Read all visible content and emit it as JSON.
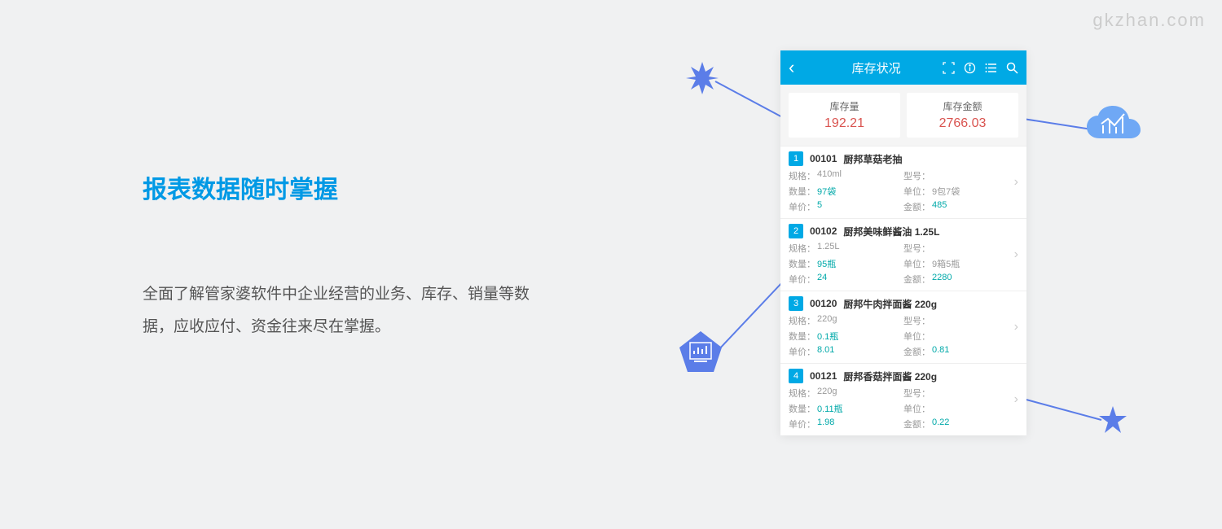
{
  "watermark": "gkzhan.com",
  "left": {
    "title": "报表数据随时掌握",
    "description": "全面了解管家婆软件中企业经营的业务、库存、销量等数据，应收应付、资金往来尽在掌握。"
  },
  "phone": {
    "header_title": "库存状况",
    "summary": [
      {
        "label": "库存量",
        "value": "192.21"
      },
      {
        "label": "库存金额",
        "value": "2766.03"
      }
    ],
    "items": [
      {
        "badge": "1",
        "code": "00101",
        "name": "厨邦草菇老抽",
        "spec_label": "规格：",
        "spec_value": "410ml",
        "model_label": "型号：",
        "model_value": "",
        "qty_label": "数量：",
        "qty_value": "97袋",
        "unit_label": "单位：",
        "unit_value": "9包7袋",
        "price_label": "单价：",
        "price_value": "5",
        "amount_label": "金额：",
        "amount_value": "485"
      },
      {
        "badge": "2",
        "code": "00102",
        "name": "厨邦美味鲜酱油 1.25L",
        "spec_label": "规格：",
        "spec_value": "1.25L",
        "model_label": "型号：",
        "model_value": "",
        "qty_label": "数量：",
        "qty_value": "95瓶",
        "unit_label": "单位：",
        "unit_value": "9箱5瓶",
        "price_label": "单价：",
        "price_value": "24",
        "amount_label": "金额：",
        "amount_value": "2280"
      },
      {
        "badge": "3",
        "code": "00120",
        "name": "厨邦牛肉拌面酱 220g",
        "spec_label": "规格：",
        "spec_value": "220g",
        "model_label": "型号：",
        "model_value": "",
        "qty_label": "数量：",
        "qty_value": "0.1瓶",
        "unit_label": "单位：",
        "unit_value": "",
        "price_label": "单价：",
        "price_value": "8.01",
        "amount_label": "金额：",
        "amount_value": "0.81"
      },
      {
        "badge": "4",
        "code": "00121",
        "name": "厨邦香菇拌面酱 220g",
        "spec_label": "规格：",
        "spec_value": "220g",
        "model_label": "型号：",
        "model_value": "",
        "qty_label": "数量：",
        "qty_value": "0.11瓶",
        "unit_label": "单位：",
        "unit_value": "",
        "price_label": "单价：",
        "price_value": "1.98",
        "amount_label": "金额：",
        "amount_value": "0.22"
      }
    ]
  },
  "colors": {
    "background": "#f0f1f2",
    "title_blue": "#0099e5",
    "header_blue": "#00a9e5",
    "red_value": "#d9534f",
    "teal": "#00a9a9",
    "decoration_blue": "#5b7de8",
    "light_decoration": "#9db7f2",
    "text_gray": "#555555",
    "label_gray": "#999999"
  }
}
